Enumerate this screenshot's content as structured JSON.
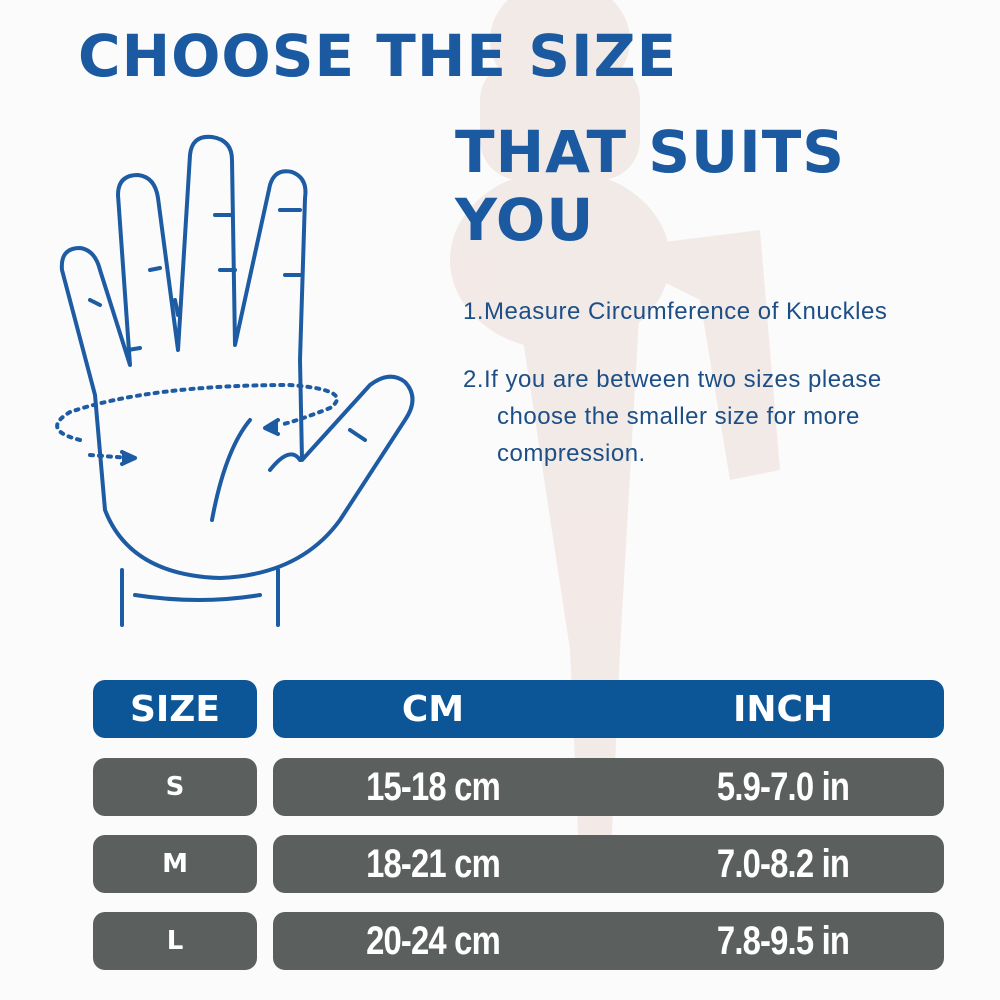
{
  "colors": {
    "title": "#1b5aa0",
    "header_bg": "#0c5597",
    "row_bg": "#5b605e",
    "instruction_text": "#1d4f86",
    "hand_outline": "#1d5ba3"
  },
  "title": {
    "line1": "CHOOSE THE SIZE",
    "line2": "THAT SUITS YOU"
  },
  "instructions": [
    {
      "number": "1.",
      "text": "Measure Circumference of Knuckles"
    },
    {
      "number": "2.",
      "lines": [
        "If you are between two sizes please",
        "choose the smaller size  for more",
        "compression."
      ]
    }
  ],
  "table": {
    "headers": {
      "size": "SIZE",
      "cm": "CM",
      "inch": "INCH"
    },
    "rows": [
      {
        "size": "S",
        "cm": "15-18 cm",
        "inch": "5.9-7.0 in"
      },
      {
        "size": "M",
        "cm": "18-21 cm",
        "inch": "7.0-8.2  in"
      },
      {
        "size": "L",
        "cm": "20-24 cm",
        "inch": "7.8-9.5 in"
      }
    ]
  },
  "icons": {
    "hand": "hand-measurement-icon"
  }
}
